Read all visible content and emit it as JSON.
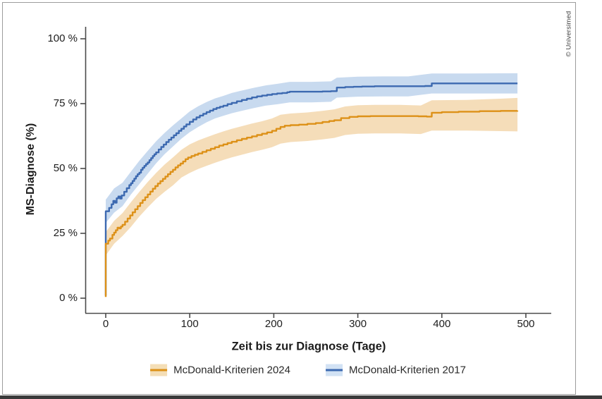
{
  "figure": {
    "credit": "© Universimed",
    "border_color": "#9c9c9c",
    "bottom_bar_color": "#3a3a3a",
    "background": "#ffffff"
  },
  "chart_data": {
    "type": "line",
    "subtype": "kaplan-meier-step-with-confidence-bands",
    "title": "",
    "xlabel": "Zeit bis zur Diagnose (Tage)",
    "ylabel": "MS-Diagnose (%)",
    "xlim": [
      0,
      530
    ],
    "ylim": [
      0,
      100
    ],
    "x_ticks": [
      0,
      100,
      200,
      300,
      400,
      500
    ],
    "x_tick_labels": [
      "0",
      "100",
      "200",
      "300",
      "400",
      "500"
    ],
    "y_ticks": [
      0,
      25,
      50,
      75,
      100
    ],
    "y_tick_labels": [
      "0 %",
      "25 %",
      "50 %",
      "75 %",
      "100 %"
    ],
    "grid": false,
    "legend_position": "bottom",
    "axis_color": "#4a4a4a",
    "series": [
      {
        "name": "McDonald-Kriterien 2024",
        "color": "#dd9118",
        "band_fill": "rgba(230,174,88,0.42)",
        "swatch_bg": "#f4deb6",
        "points": [
          [
            0,
            0.5
          ],
          [
            0,
            21
          ],
          [
            3,
            22.2
          ],
          [
            5,
            23
          ],
          [
            8,
            24.4
          ],
          [
            10,
            25.3
          ],
          [
            12,
            26.2
          ],
          [
            14,
            27.2
          ],
          [
            16,
            26.9
          ],
          [
            18,
            27.6
          ],
          [
            20,
            28.3
          ],
          [
            23,
            29.5
          ],
          [
            26,
            30.7
          ],
          [
            29,
            31.9
          ],
          [
            32,
            33.1
          ],
          [
            35,
            34.3
          ],
          [
            38,
            35.5
          ],
          [
            41,
            36.7
          ],
          [
            44,
            37.8
          ],
          [
            47,
            38.9
          ],
          [
            50,
            40
          ],
          [
            53,
            41.1
          ],
          [
            56,
            42.2
          ],
          [
            59,
            43.2
          ],
          [
            62,
            44.2
          ],
          [
            65,
            45.1
          ],
          [
            68,
            46
          ],
          [
            71,
            46.9
          ],
          [
            74,
            47.8
          ],
          [
            77,
            48.7
          ],
          [
            80,
            49.5
          ],
          [
            83,
            50.4
          ],
          [
            86,
            51.2
          ],
          [
            89,
            51.9
          ],
          [
            92,
            52.7
          ],
          [
            95,
            53.6
          ],
          [
            98,
            54.2
          ],
          [
            102,
            54.8
          ],
          [
            106,
            55.3
          ],
          [
            110,
            55.8
          ],
          [
            115,
            56.4
          ],
          [
            120,
            57
          ],
          [
            125,
            57.6
          ],
          [
            130,
            58.2
          ],
          [
            135,
            58.8
          ],
          [
            140,
            59.3
          ],
          [
            145,
            59.8
          ],
          [
            150,
            60.3
          ],
          [
            156,
            60.9
          ],
          [
            162,
            61.4
          ],
          [
            168,
            61.9
          ],
          [
            174,
            62.4
          ],
          [
            180,
            62.9
          ],
          [
            186,
            63.4
          ],
          [
            192,
            63.9
          ],
          [
            198,
            64.5
          ],
          [
            203,
            65.3
          ],
          [
            208,
            66
          ],
          [
            213,
            66.5
          ],
          [
            220,
            66.7
          ],
          [
            230,
            66.9
          ],
          [
            240,
            67.2
          ],
          [
            250,
            67.5
          ],
          [
            258,
            67.9
          ],
          [
            266,
            68.3
          ],
          [
            272,
            68.6
          ],
          [
            280,
            69.4
          ],
          [
            290,
            69.9
          ],
          [
            300,
            70.1
          ],
          [
            315,
            70.2
          ],
          [
            335,
            70.2
          ],
          [
            355,
            70.2
          ],
          [
            372,
            70.1
          ],
          [
            382,
            70
          ],
          [
            388,
            71.5
          ],
          [
            400,
            71.7
          ],
          [
            420,
            71.9
          ],
          [
            445,
            72.1
          ],
          [
            470,
            72.2
          ],
          [
            490,
            72.3
          ]
        ],
        "band_lo": [
          [
            0,
            16.5
          ],
          [
            10,
            21
          ],
          [
            20,
            24
          ],
          [
            30,
            27.5
          ],
          [
            40,
            31.5
          ],
          [
            50,
            35
          ],
          [
            60,
            38.3
          ],
          [
            70,
            41
          ],
          [
            80,
            43.5
          ],
          [
            90,
            46.5
          ],
          [
            100,
            48.3
          ],
          [
            110,
            49.8
          ],
          [
            120,
            51
          ],
          [
            130,
            52.2
          ],
          [
            140,
            53.3
          ],
          [
            150,
            54.3
          ],
          [
            162,
            55.3
          ],
          [
            174,
            56.3
          ],
          [
            186,
            57.2
          ],
          [
            198,
            58.2
          ],
          [
            208,
            59.6
          ],
          [
            220,
            60.2
          ],
          [
            240,
            60.6
          ],
          [
            258,
            61.2
          ],
          [
            272,
            61.8
          ],
          [
            285,
            62.9
          ],
          [
            300,
            63.4
          ],
          [
            320,
            63.5
          ],
          [
            350,
            63.5
          ],
          [
            375,
            63.3
          ],
          [
            388,
            64.6
          ],
          [
            430,
            64.6
          ],
          [
            470,
            64.4
          ],
          [
            490,
            64.3
          ]
        ],
        "band_hi": [
          [
            0,
            25.5
          ],
          [
            10,
            29.8
          ],
          [
            20,
            32.8
          ],
          [
            30,
            37
          ],
          [
            40,
            41
          ],
          [
            50,
            44.8
          ],
          [
            60,
            48.3
          ],
          [
            70,
            51.5
          ],
          [
            80,
            54.3
          ],
          [
            90,
            57.2
          ],
          [
            100,
            59.3
          ],
          [
            110,
            60.8
          ],
          [
            120,
            62
          ],
          [
            130,
            63.2
          ],
          [
            140,
            64.3
          ],
          [
            150,
            65.3
          ],
          [
            162,
            66.3
          ],
          [
            174,
            67.3
          ],
          [
            186,
            68.2
          ],
          [
            198,
            69.3
          ],
          [
            208,
            70.7
          ],
          [
            220,
            71.2
          ],
          [
            240,
            71.6
          ],
          [
            258,
            72.2
          ],
          [
            272,
            72.8
          ],
          [
            285,
            73.9
          ],
          [
            300,
            74.4
          ],
          [
            320,
            74.5
          ],
          [
            350,
            74.5
          ],
          [
            375,
            74.3
          ],
          [
            388,
            76.3
          ],
          [
            430,
            76.4
          ],
          [
            470,
            76.9
          ],
          [
            490,
            77.2
          ]
        ]
      },
      {
        "name": "McDonald-Kriterien 2017",
        "color": "#3c69b0",
        "band_fill": "rgba(118,163,214,0.40)",
        "swatch_bg": "#d2e2f4",
        "points": [
          [
            0,
            1
          ],
          [
            0,
            33.5
          ],
          [
            4,
            34.8
          ],
          [
            7,
            36.2
          ],
          [
            9,
            37.5
          ],
          [
            11,
            36.8
          ],
          [
            13,
            38.5
          ],
          [
            15,
            39.2
          ],
          [
            17,
            38.4
          ],
          [
            19,
            39.6
          ],
          [
            22,
            41
          ],
          [
            25,
            42.4
          ],
          [
            28,
            43.6
          ],
          [
            30,
            44.3
          ],
          [
            32,
            45.2
          ],
          [
            34,
            46.1
          ],
          [
            36,
            47
          ],
          [
            38,
            47.8
          ],
          [
            40,
            48.4
          ],
          [
            42,
            49.5
          ],
          [
            44,
            50.3
          ],
          [
            46,
            51
          ],
          [
            48,
            51.7
          ],
          [
            50,
            52.3
          ],
          [
            52,
            53.2
          ],
          [
            54,
            54
          ],
          [
            56,
            54.8
          ],
          [
            58,
            55.5
          ],
          [
            60,
            56.2
          ],
          [
            63,
            57.3
          ],
          [
            66,
            58.3
          ],
          [
            69,
            59.2
          ],
          [
            72,
            60.2
          ],
          [
            75,
            61.1
          ],
          [
            78,
            61.9
          ],
          [
            81,
            62.8
          ],
          [
            84,
            63.6
          ],
          [
            87,
            64.5
          ],
          [
            90,
            65.3
          ],
          [
            93,
            66.2
          ],
          [
            96,
            67
          ],
          [
            100,
            68
          ],
          [
            104,
            68.9
          ],
          [
            108,
            69.7
          ],
          [
            112,
            70.4
          ],
          [
            116,
            71.1
          ],
          [
            120,
            71.7
          ],
          [
            124,
            72.3
          ],
          [
            128,
            72.9
          ],
          [
            132,
            73.4
          ],
          [
            136,
            73.8
          ],
          [
            140,
            74.2
          ],
          [
            145,
            74.8
          ],
          [
            150,
            75.3
          ],
          [
            156,
            75.9
          ],
          [
            162,
            76.4
          ],
          [
            168,
            76.9
          ],
          [
            174,
            77.4
          ],
          [
            180,
            77.8
          ],
          [
            186,
            78.1
          ],
          [
            192,
            78.4
          ],
          [
            198,
            78.7
          ],
          [
            204,
            78.9
          ],
          [
            210,
            79.1
          ],
          [
            216,
            79.4
          ],
          [
            219,
            79.6
          ],
          [
            230,
            79.6
          ],
          [
            245,
            79.6
          ],
          [
            258,
            79.7
          ],
          [
            268,
            79.8
          ],
          [
            275,
            81.2
          ],
          [
            285,
            81.4
          ],
          [
            295,
            81.5
          ],
          [
            305,
            81.6
          ],
          [
            320,
            81.7
          ],
          [
            340,
            81.7
          ],
          [
            360,
            81.7
          ],
          [
            380,
            81.8
          ],
          [
            388,
            82.8
          ],
          [
            405,
            82.8
          ],
          [
            430,
            82.8
          ],
          [
            460,
            82.8
          ],
          [
            490,
            82.8
          ]
        ],
        "band_lo": [
          [
            0,
            29
          ],
          [
            10,
            33
          ],
          [
            20,
            35.5
          ],
          [
            30,
            40
          ],
          [
            40,
            44
          ],
          [
            50,
            48
          ],
          [
            60,
            52
          ],
          [
            70,
            55.5
          ],
          [
            80,
            58.5
          ],
          [
            90,
            61.5
          ],
          [
            100,
            64
          ],
          [
            110,
            66
          ],
          [
            120,
            67.8
          ],
          [
            130,
            69.3
          ],
          [
            140,
            70.3
          ],
          [
            150,
            71.3
          ],
          [
            160,
            72.1
          ],
          [
            175,
            73.2
          ],
          [
            190,
            74.2
          ],
          [
            205,
            74.8
          ],
          [
            219,
            75.5
          ],
          [
            245,
            75.5
          ],
          [
            268,
            75.7
          ],
          [
            275,
            77.3
          ],
          [
            300,
            77.7
          ],
          [
            330,
            77.8
          ],
          [
            360,
            77.8
          ],
          [
            388,
            78.9
          ],
          [
            430,
            78.9
          ],
          [
            490,
            78.9
          ]
        ],
        "band_hi": [
          [
            0,
            38
          ],
          [
            10,
            42.3
          ],
          [
            20,
            44.5
          ],
          [
            30,
            48.8
          ],
          [
            40,
            53
          ],
          [
            50,
            56.8
          ],
          [
            60,
            60.5
          ],
          [
            70,
            63.7
          ],
          [
            80,
            66.6
          ],
          [
            90,
            69.3
          ],
          [
            100,
            72
          ],
          [
            110,
            74
          ],
          [
            120,
            75.6
          ],
          [
            130,
            77
          ],
          [
            140,
            78
          ],
          [
            150,
            79.1
          ],
          [
            160,
            79.9
          ],
          [
            175,
            81
          ],
          [
            190,
            82
          ],
          [
            205,
            82.7
          ],
          [
            219,
            83.4
          ],
          [
            245,
            83.4
          ],
          [
            268,
            83.6
          ],
          [
            275,
            85
          ],
          [
            300,
            85.4
          ],
          [
            330,
            85.5
          ],
          [
            360,
            85.5
          ],
          [
            388,
            86.6
          ],
          [
            430,
            86.6
          ],
          [
            490,
            86.7
          ]
        ]
      }
    ]
  }
}
